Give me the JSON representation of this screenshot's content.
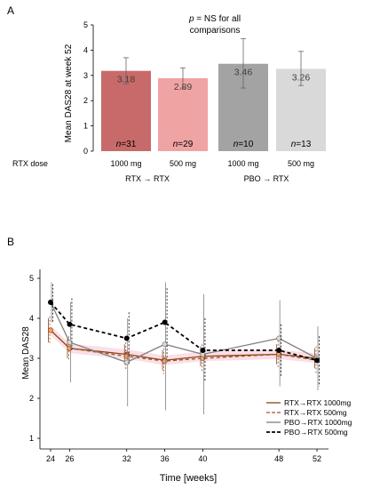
{
  "chart_data": [
    {
      "panel": "A",
      "type": "bar",
      "ylabel": "Mean DAS28 at week 52",
      "ylim": [
        0,
        5
      ],
      "yticks": [
        0,
        1,
        2,
        3,
        4,
        5
      ],
      "annotation_p": "p",
      "annotation_rest": " = NS for all",
      "annotation_line2": "comparisons",
      "row_label": "RTX dose",
      "categories": [
        "1000 mg",
        "500 mg",
        "1000 mg",
        "500 mg"
      ],
      "values": [
        3.18,
        2.89,
        3.46,
        3.26
      ],
      "value_labels": [
        "3.18",
        "2.89",
        "3.46",
        "3.26"
      ],
      "error_low": [
        2.65,
        2.5,
        2.5,
        2.6
      ],
      "error_high": [
        3.7,
        3.3,
        4.45,
        3.95
      ],
      "n_labels": [
        [
          "n",
          "=31"
        ],
        [
          "n",
          "=29"
        ],
        [
          "n",
          "=10"
        ],
        [
          "n",
          "=13"
        ]
      ],
      "colors": [
        "#c96a6a",
        "#f0a3a3",
        "#a3a3a3",
        "#d9d9d9"
      ],
      "groups": [
        "RTX → RTX",
        "PBO → RTX"
      ],
      "grid": false
    },
    {
      "panel": "B",
      "type": "line",
      "xlabel": "Time [weeks]",
      "ylabel": "Mean DAS28",
      "x": [
        24,
        26,
        32,
        36,
        40,
        48,
        52
      ],
      "xticks": [
        24,
        26,
        32,
        36,
        40,
        48,
        52
      ],
      "ylim": [
        1,
        5
      ],
      "yticks": [
        1,
        2,
        3,
        4,
        5
      ],
      "legend_position": "bottom-right",
      "series": [
        {
          "name": "RTX→RTX 1000mg",
          "color": "#8b4513",
          "dash": "solid",
          "values": [
            3.7,
            3.25,
            3.1,
            2.95,
            3.05,
            3.1,
            3.0
          ],
          "err": [
            [
              3.4,
              4.0
            ],
            [
              3.0,
              3.5
            ],
            [
              2.85,
              3.35
            ],
            [
              2.7,
              3.2
            ],
            [
              2.8,
              3.3
            ],
            [
              2.85,
              3.35
            ],
            [
              2.75,
              3.25
            ]
          ]
        },
        {
          "name": "RTX→RTX 500mg",
          "color": "#a0522d",
          "dash": "dashed",
          "values": [
            3.7,
            3.25,
            3.05,
            2.93,
            3.0,
            3.1,
            2.95
          ],
          "err": [
            [
              3.35,
              4.05
            ],
            [
              2.95,
              3.55
            ],
            [
              2.7,
              3.4
            ],
            [
              2.6,
              3.25
            ],
            [
              2.65,
              3.35
            ],
            [
              2.75,
              3.45
            ],
            [
              2.6,
              3.3
            ]
          ]
        },
        {
          "name": "PBO→RTX 1000mg",
          "color": "#808080",
          "dash": "solid",
          "values": [
            4.4,
            3.4,
            2.9,
            3.35,
            3.1,
            3.5,
            3.0
          ],
          "err": [
            [
              3.9,
              4.9
            ],
            [
              2.4,
              4.4
            ],
            [
              1.8,
              4.0
            ],
            [
              1.7,
              4.9
            ],
            [
              1.6,
              4.6
            ],
            [
              2.3,
              4.45
            ],
            [
              2.2,
              3.8
            ]
          ]
        },
        {
          "name": "PBO→RTX 500mg",
          "color": "#000000",
          "dash": "dashed",
          "values": [
            4.4,
            3.85,
            3.5,
            3.9,
            3.2,
            3.2,
            2.95
          ],
          "err": [
            [
              3.9,
              4.85
            ],
            [
              3.2,
              4.5
            ],
            [
              2.85,
              4.15
            ],
            [
              3.0,
              4.75
            ],
            [
              2.4,
              4.0
            ],
            [
              2.55,
              3.85
            ],
            [
              2.3,
              3.55
            ]
          ]
        }
      ]
    }
  ]
}
